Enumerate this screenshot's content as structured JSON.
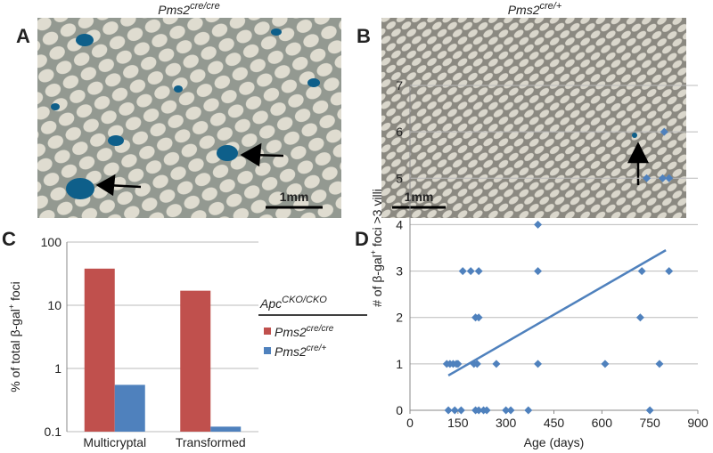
{
  "panels": {
    "A": {
      "letter": "A",
      "title": {
        "base": "Pms2",
        "sup": "cre/cre"
      },
      "scale_bar": "1mm"
    },
    "B": {
      "letter": "B",
      "title": {
        "base": "Pms2",
        "sup": "cre/+"
      },
      "scale_bar": "1mm"
    }
  },
  "chart_data": [
    {
      "type": "bar",
      "letter": "C",
      "categories": [
        "Multicryptal",
        "Transformed"
      ],
      "series": [
        {
          "name": {
            "base": "Pms2",
            "sup": "cre/cre"
          },
          "color": "#c0504d",
          "values": [
            38,
            17
          ]
        },
        {
          "name": {
            "base": "Pms2",
            "sup": "cre/+"
          },
          "color": "#4f81bd",
          "values": [
            0.55,
            0.12
          ]
        }
      ],
      "ylabel": {
        "base": "% of total β-gal",
        "sup": "+",
        "rest": " foci"
      },
      "legend_title": {
        "base": "Apc",
        "sup": "CKO/CKO"
      },
      "log_y": true,
      "ylim": [
        0.1,
        100
      ],
      "yticks": [
        0.1,
        1,
        10,
        100
      ],
      "grid": true
    },
    {
      "type": "scatter",
      "letter": "D",
      "color": "#4f81bd",
      "x": [
        115,
        125,
        135,
        145,
        150,
        200,
        210,
        270,
        400,
        610,
        780,
        120,
        140,
        160,
        205,
        215,
        230,
        240,
        300,
        315,
        370,
        750,
        205,
        215,
        720,
        165,
        190,
        215,
        400,
        725,
        810,
        400,
        740,
        790,
        810,
        795
      ],
      "values": [
        1,
        1,
        1,
        1,
        1,
        1,
        1,
        1,
        1,
        1,
        1,
        0,
        0,
        0,
        0,
        0,
        0,
        0,
        0,
        0,
        0,
        0,
        2,
        2,
        2,
        3,
        3,
        3,
        3,
        3,
        3,
        4,
        5,
        5,
        5,
        6
      ],
      "trendline": {
        "x": [
          120,
          800
        ],
        "y": [
          0.75,
          3.45
        ]
      },
      "xlabel": "Age (days)",
      "ylabel": {
        "base": "# of β-gal",
        "sup": "+",
        "rest": " foci >3 villi"
      },
      "xlim": [
        0,
        900
      ],
      "xticks": [
        0,
        150,
        300,
        450,
        600,
        750,
        900
      ],
      "ylim": [
        0,
        7
      ],
      "yticks": [
        0,
        1,
        2,
        3,
        4,
        5,
        6,
        7
      ],
      "grid": true
    }
  ]
}
